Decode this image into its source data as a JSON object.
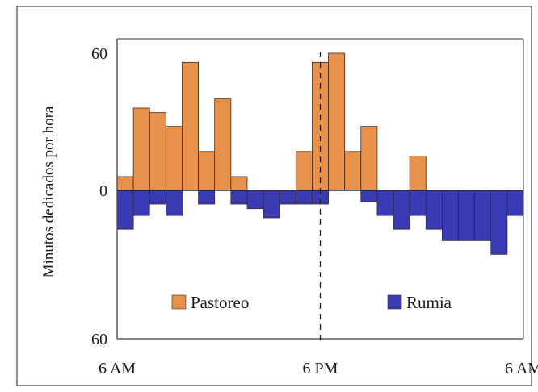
{
  "chart_data": {
    "type": "bar",
    "ylabel": "Minutos dedicados por hora",
    "y_ticks": [
      {
        "label": "60",
        "value": 60
      },
      {
        "label": "0",
        "value": 0
      },
      {
        "label": "60",
        "value": -60
      }
    ],
    "ylim": [
      -60,
      60
    ],
    "x_tick_labels": [
      "6 AM",
      "6 PM",
      "6 AM"
    ],
    "x_tick_hours": [
      0,
      12,
      24
    ],
    "divider_hour": 12,
    "series": [
      {
        "name": "Pastoreo",
        "color": "#e8914a",
        "values": [
          6,
          36,
          34,
          28,
          56,
          17,
          40,
          6,
          0,
          0,
          0,
          17,
          56,
          60,
          17,
          28,
          0,
          0,
          15,
          0,
          0,
          0,
          0,
          0,
          0
        ]
      },
      {
        "name": "Rumia",
        "color": "#3a3ab5",
        "values": [
          -17,
          -11,
          -6,
          -11,
          0,
          -6,
          0,
          -6,
          -8,
          -12,
          -6,
          -6,
          -6,
          0,
          0,
          -5,
          -11,
          -17,
          -11,
          -17,
          -22,
          -22,
          -22,
          -28,
          -11
        ]
      }
    ],
    "legend": "inside-bottom",
    "grid": false
  },
  "colors": {
    "frame": "#5a5a5a",
    "bar_outline": "#3a2a20"
  }
}
